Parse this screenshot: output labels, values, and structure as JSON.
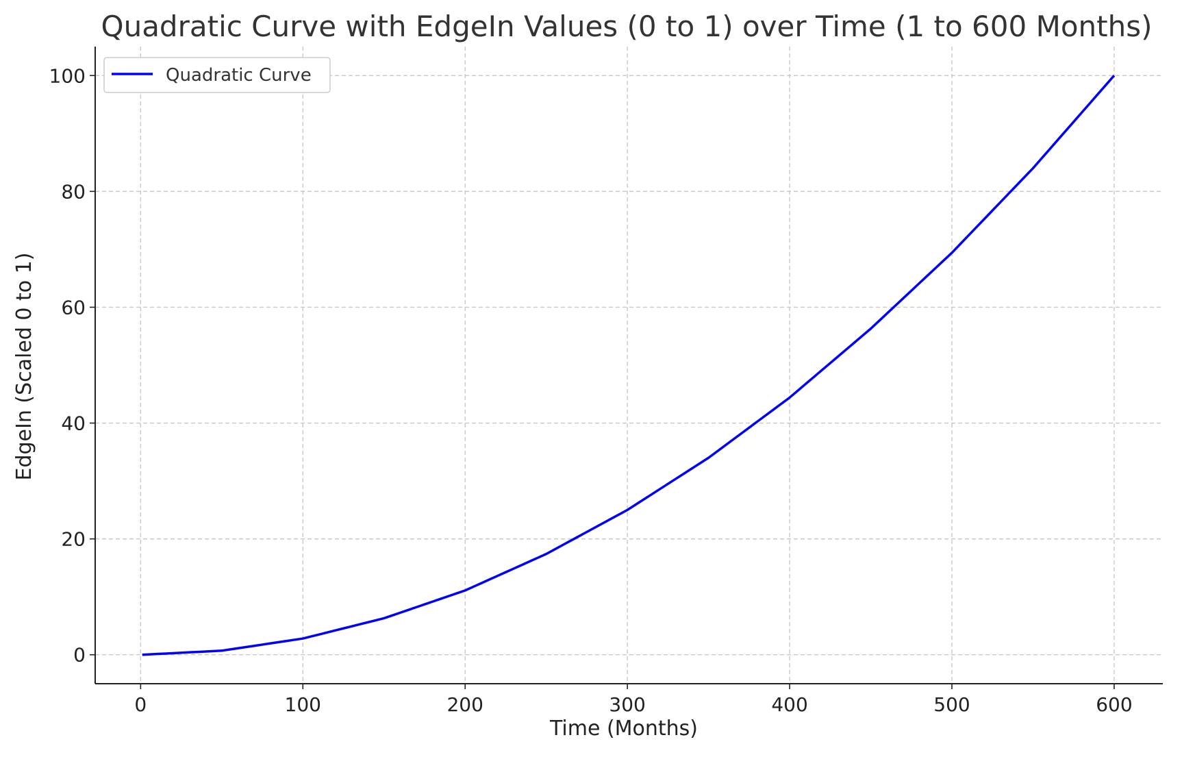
{
  "chart_data": {
    "type": "line",
    "title": "Quadratic Curve with EdgeIn Values (0 to 1) over Time (1 to 600 Months)",
    "xlabel": "Time (Months)",
    "ylabel": "EdgeIn (Scaled 0 to 1)",
    "xlim": [
      -28,
      630
    ],
    "ylim": [
      -5,
      105
    ],
    "xticks": [
      0,
      100,
      200,
      300,
      400,
      500,
      600
    ],
    "yticks": [
      0,
      20,
      40,
      60,
      80,
      100
    ],
    "grid": true,
    "legend_position": "upper-left",
    "series": [
      {
        "name": "Quadratic Curve",
        "color": "#0000ff",
        "x": [
          1,
          50,
          100,
          150,
          200,
          250,
          300,
          350,
          400,
          450,
          500,
          550,
          600
        ],
        "y": [
          0,
          0.7,
          2.8,
          6.3,
          11.1,
          17.4,
          25.0,
          34.0,
          44.4,
          56.3,
          69.4,
          84.0,
          100.0
        ]
      }
    ]
  }
}
